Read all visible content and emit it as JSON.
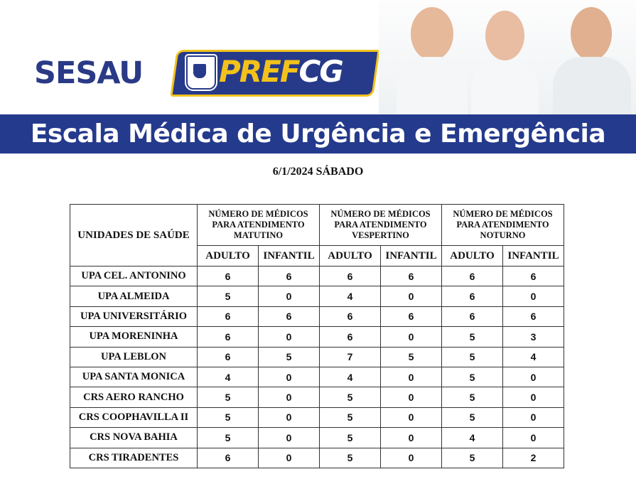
{
  "header": {
    "sesau": "SESAU",
    "pref_yellow": "PREF",
    "pref_white": "CG",
    "title": "Escala Médica de Urgência e Emergência"
  },
  "colors": {
    "brand_blue": "#243a8c",
    "brand_yellow": "#f2c21b"
  },
  "date": "6/1/2024 SÁBADO",
  "table": {
    "unit_header": "UNIDADES DE SAÚDE",
    "shift_headers": [
      "NÚMERO DE MÉDICOS PARA ATENDIMENTO MATUTINO",
      "NÚMERO DE MÉDICOS PARA ATENDIMENTO VESPERTINO",
      "NÚMERO DE MÉDICOS PARA ATENDIMENTO NOTURNO"
    ],
    "sub_headers": [
      "ADULTO",
      "INFANTIL",
      "ADULTO",
      "INFANTIL",
      "ADULTO",
      "INFANTIL"
    ],
    "rows": [
      {
        "name": "UPA CEL. ANTONINO",
        "values": [
          "6",
          "6",
          "6",
          "6",
          "6",
          "6"
        ]
      },
      {
        "name": "UPA ALMEIDA",
        "values": [
          "5",
          "0",
          "4",
          "0",
          "6",
          "0"
        ]
      },
      {
        "name": "UPA UNIVERSITÁRIO",
        "values": [
          "6",
          "6",
          "6",
          "6",
          "6",
          "6"
        ]
      },
      {
        "name": "UPA MORENINHA",
        "values": [
          "6",
          "0",
          "6",
          "0",
          "5",
          "3"
        ]
      },
      {
        "name": "UPA LEBLON",
        "values": [
          "6",
          "5",
          "7",
          "5",
          "5",
          "4"
        ]
      },
      {
        "name": "UPA SANTA MONICA",
        "values": [
          "4",
          "0",
          "4",
          "0",
          "5",
          "0"
        ]
      },
      {
        "name": "CRS AERO RANCHO",
        "values": [
          "5",
          "0",
          "5",
          "0",
          "5",
          "0"
        ]
      },
      {
        "name": "CRS COOPHAVILLA II",
        "values": [
          "5",
          "0",
          "5",
          "0",
          "5",
          "0"
        ]
      },
      {
        "name": "CRS NOVA BAHIA",
        "values": [
          "5",
          "0",
          "5",
          "0",
          "4",
          "0"
        ]
      },
      {
        "name": "CRS TIRADENTES",
        "values": [
          "6",
          "0",
          "5",
          "0",
          "5",
          "2"
        ]
      }
    ]
  }
}
